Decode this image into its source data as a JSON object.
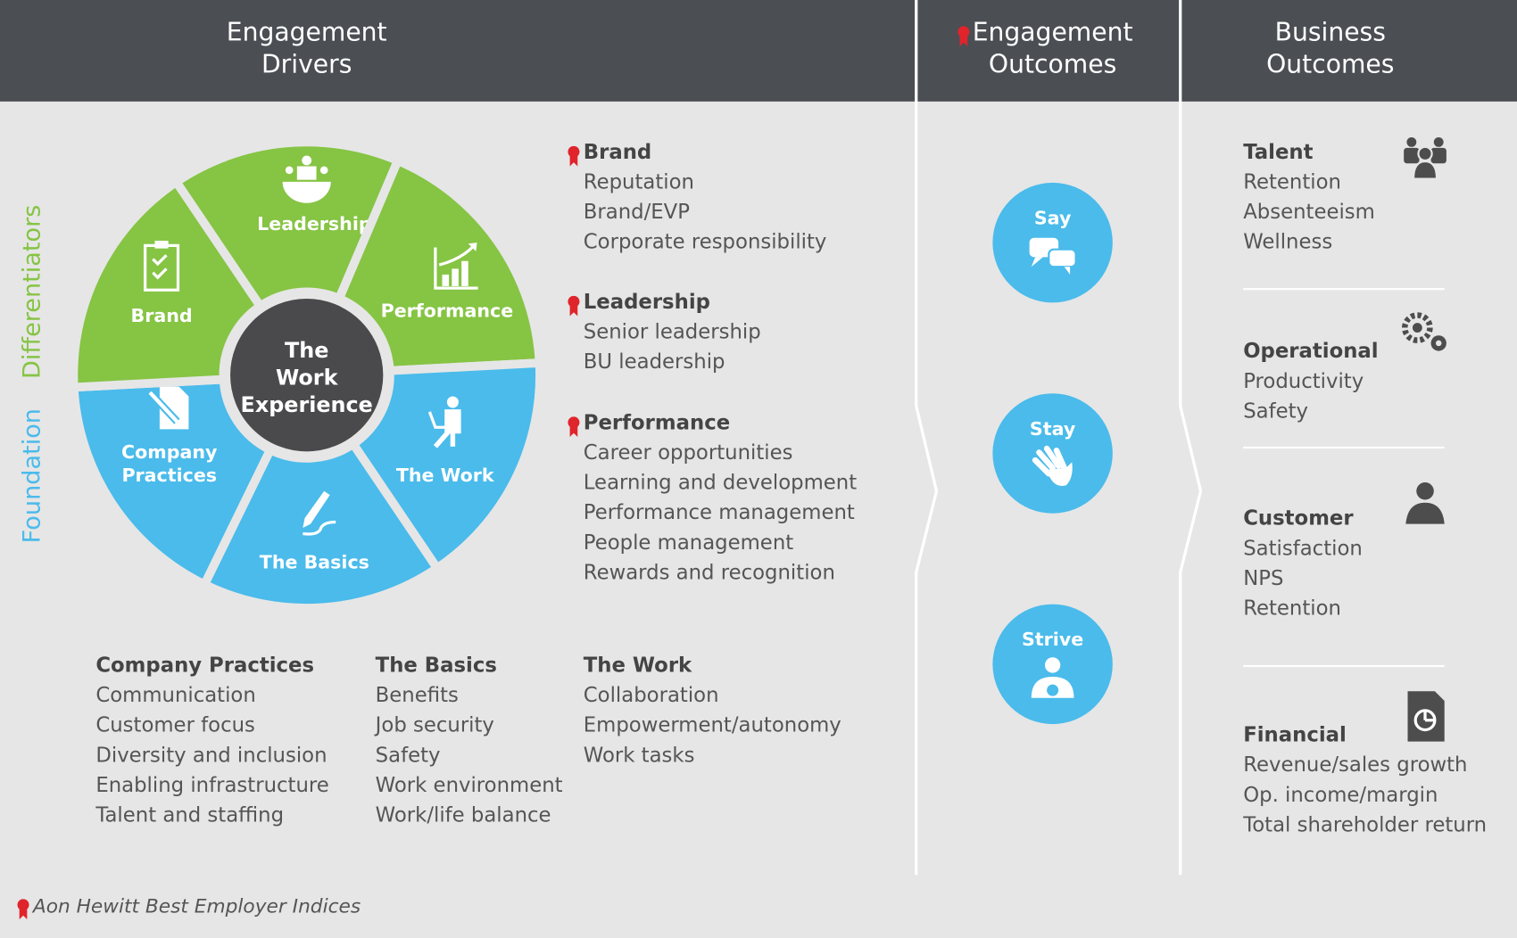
{
  "header": {
    "drivers_title": [
      "Engagement",
      "Drivers"
    ],
    "engagement_outcomes_title": [
      "Engagement",
      "Outcomes"
    ],
    "business_outcomes_title": [
      "Business",
      "Outcomes"
    ]
  },
  "side_labels": {
    "differentiators": "Differentiators",
    "foundation": "Foundation"
  },
  "wheel": {
    "center": [
      "The",
      "Work",
      "Experience"
    ],
    "segments": [
      {
        "label": "Leadership",
        "group": "differentiators",
        "icon": "meeting-icon"
      },
      {
        "label": "Performance",
        "group": "differentiators",
        "icon": "bar-chart-growth-icon"
      },
      {
        "label": "The Work",
        "group": "foundation",
        "icon": "person-at-laptop-icon"
      },
      {
        "label": "The Basics",
        "group": "foundation",
        "icon": "pen-signature-icon"
      },
      {
        "label": "Company Practices",
        "group": "foundation",
        "icon": "document-pencil-icon"
      },
      {
        "label": "Brand",
        "group": "differentiators",
        "icon": "clipboard-check-icon"
      }
    ],
    "colors": {
      "differentiators": "#86c444",
      "foundation": "#4abbeb",
      "center": "#4a4a4d"
    }
  },
  "differentiator_lists": [
    {
      "title": "Brand",
      "items": [
        "Reputation",
        "Brand/EVP",
        "Corporate responsibility"
      ]
    },
    {
      "title": "Leadership",
      "items": [
        "Senior leadership",
        "BU leadership"
      ]
    },
    {
      "title": "Performance",
      "items": [
        "Career opportunities",
        "Learning and development",
        "Performance management",
        "People management",
        "Rewards and recognition"
      ]
    }
  ],
  "foundation_lists": [
    {
      "title": "Company Practices",
      "items": [
        "Communication",
        "Customer focus",
        "Diversity and inclusion",
        "Enabling infrastructure",
        "Talent and staffing"
      ]
    },
    {
      "title": "The Basics",
      "items": [
        "Benefits",
        "Job security",
        "Safety",
        "Work environment",
        "Work/life balance"
      ]
    },
    {
      "title": "The Work",
      "items": [
        "Collaboration",
        "Empowerment/autonomy",
        "Work tasks"
      ]
    }
  ],
  "engagement_outcomes": [
    {
      "label": "Say",
      "icon": "speech-bubbles-icon"
    },
    {
      "label": "Stay",
      "icon": "hand-icon"
    },
    {
      "label": "Strive",
      "icon": "medal-person-icon"
    }
  ],
  "business_outcomes": [
    {
      "title": "Talent",
      "items": [
        "Retention",
        "Absenteeism",
        "Wellness"
      ],
      "icon": "people-group-icon"
    },
    {
      "title": "Operational",
      "items": [
        "Productivity",
        "Safety"
      ],
      "icon": "gears-icon"
    },
    {
      "title": "Customer",
      "items": [
        "Satisfaction",
        "NPS",
        "Retention"
      ],
      "icon": "person-icon"
    },
    {
      "title": "Financial",
      "items": [
        "Revenue/sales growth",
        "Op. income/margin",
        "Total shareholder return"
      ],
      "icon": "pie-chart-document-icon"
    }
  ],
  "footer": {
    "legend": "Aon Hewitt Best Employer Indices",
    "icon": "award-ribbon-icon",
    "ribbon_color": "#e0242b"
  }
}
